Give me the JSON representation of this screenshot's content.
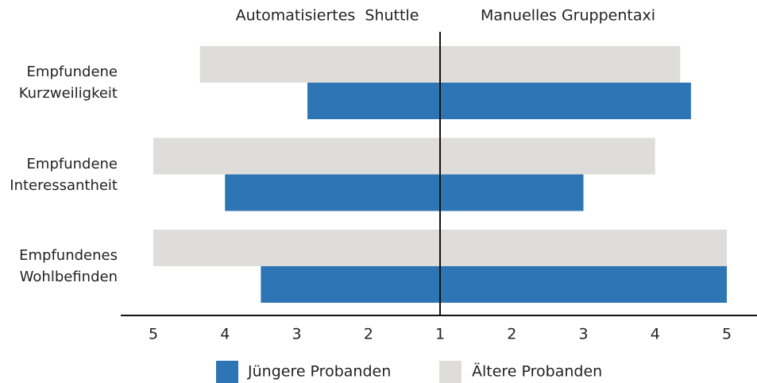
{
  "chart_data": {
    "type": "butterfly",
    "categories": [
      "Empfundene Kurzweiligkeit",
      "Empfundene Interessantheit",
      "Empfundenes Wohlbefinden"
    ],
    "legend": [
      {
        "name": "Jüngere Probanden",
        "color": "#2e75b6"
      },
      {
        "name": "Ältere Probanden",
        "color": "#deddda"
      }
    ],
    "panels": [
      {
        "title": "Automatisiertes  Shuttle",
        "direction": "left",
        "series": [
          {
            "values": [
              2.85,
              4,
              3.5
            ]
          },
          {
            "values": [
              4.35,
              5,
              5
            ]
          }
        ]
      },
      {
        "title": "Manuelles Gruppentaxi",
        "direction": "right",
        "series": [
          {
            "values": [
              4.5,
              3,
              5
            ]
          },
          {
            "values": [
              4.35,
              4,
              5
            ]
          }
        ]
      }
    ],
    "xlim": [
      1,
      5
    ],
    "xticks": [
      1,
      2,
      3,
      4,
      5
    ]
  }
}
